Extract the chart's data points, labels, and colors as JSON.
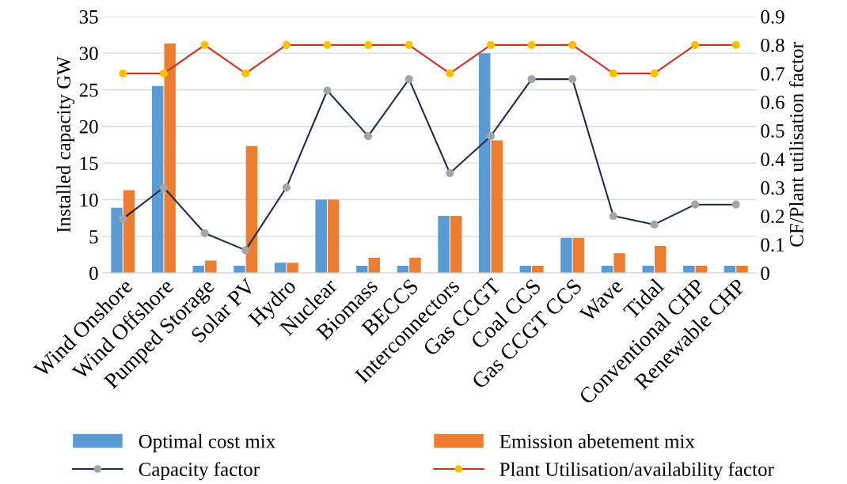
{
  "chart_data": {
    "type": "bar",
    "ylabel": "Installed capacity GW",
    "y2label": "CF/Plant utilisation factor",
    "categories": [
      "Wind Onshore",
      "Wind Offshore",
      "Pumped Storage",
      "Solar PV",
      "Hydro",
      "Nuclear",
      "Biomass",
      "BECCS",
      "Interconnectors",
      "Gas CCGT",
      "Coal CCS",
      "Gas CCGT CCS",
      "Wave",
      "Tidal",
      "Conventional CHP",
      "Renewable CHP"
    ],
    "series": [
      {
        "name": "Optimal cost mix",
        "color": "#5b9bd5",
        "values": [
          8.9,
          25.5,
          1,
          1,
          1.4,
          10,
          1,
          1,
          7.8,
          30,
          1,
          4.8,
          1,
          1,
          1,
          1
        ]
      },
      {
        "name": "Emission abetement mix",
        "color": "#ed7d31",
        "values": [
          11.3,
          31.3,
          1.7,
          17.3,
          1.4,
          10,
          2.1,
          2.1,
          7.8,
          18.1,
          1,
          4.8,
          2.7,
          3.7,
          1,
          1
        ]
      },
      {
        "name": "Capacity factor",
        "type": "line",
        "axis": "y2",
        "color": "#1f2d4e",
        "colors": [
          "#a5a5a5",
          "#a5a5a5",
          "#a5a5a5",
          "#a5a5a5",
          "#a5a5a5",
          "#a5a5a5",
          "#a5a5a5",
          "#a5a5a5",
          "#a5a5a5",
          "#a5a5a5",
          "#a5a5a5",
          "#a5a5a5",
          "#a5a5a5",
          "#a5a5a5",
          "#a5a5a5",
          "#a5a5a5"
        ],
        "values": [
          0.19,
          0.3,
          0.14,
          0.08,
          0.3,
          0.64,
          0.48,
          0.68,
          0.35,
          0.48,
          0.68,
          0.68,
          0.2,
          0.17,
          0.24,
          0.24
        ]
      },
      {
        "name": "Plant Utilisation/availability factor",
        "type": "line",
        "axis": "y2",
        "color": "#d0312d",
        "colors": [
          "#ffc000",
          "#ffc000",
          "#ffc000",
          "#ffc000",
          "#ffc000",
          "#ffc000",
          "#ffc000",
          "#ffc000",
          "#ffc000",
          "#ffc000",
          "#ffc000",
          "#ffc000",
          "#ffc000",
          "#ffc000",
          "#ffc000",
          "#ffc000"
        ],
        "values": [
          0.7,
          0.7,
          0.8,
          0.7,
          0.8,
          0.8,
          0.8,
          0.8,
          0.7,
          0.8,
          0.8,
          0.8,
          0.7,
          0.7,
          0.8,
          0.8
        ]
      }
    ],
    "ylim": [
      0,
      35
    ],
    "yticks": [
      0,
      5,
      10,
      15,
      20,
      25,
      30,
      35
    ],
    "y2lim": [
      0,
      0.9
    ],
    "y2ticks": [
      {
        "value": 0,
        "label": "0"
      },
      0.1,
      0.2,
      0.3,
      0.4,
      0.5,
      0.6,
      0.7,
      0.8,
      0.9
    ],
    "grid": "y",
    "legend": "bottom",
    "marker": "circle",
    "line_style": "solid"
  }
}
